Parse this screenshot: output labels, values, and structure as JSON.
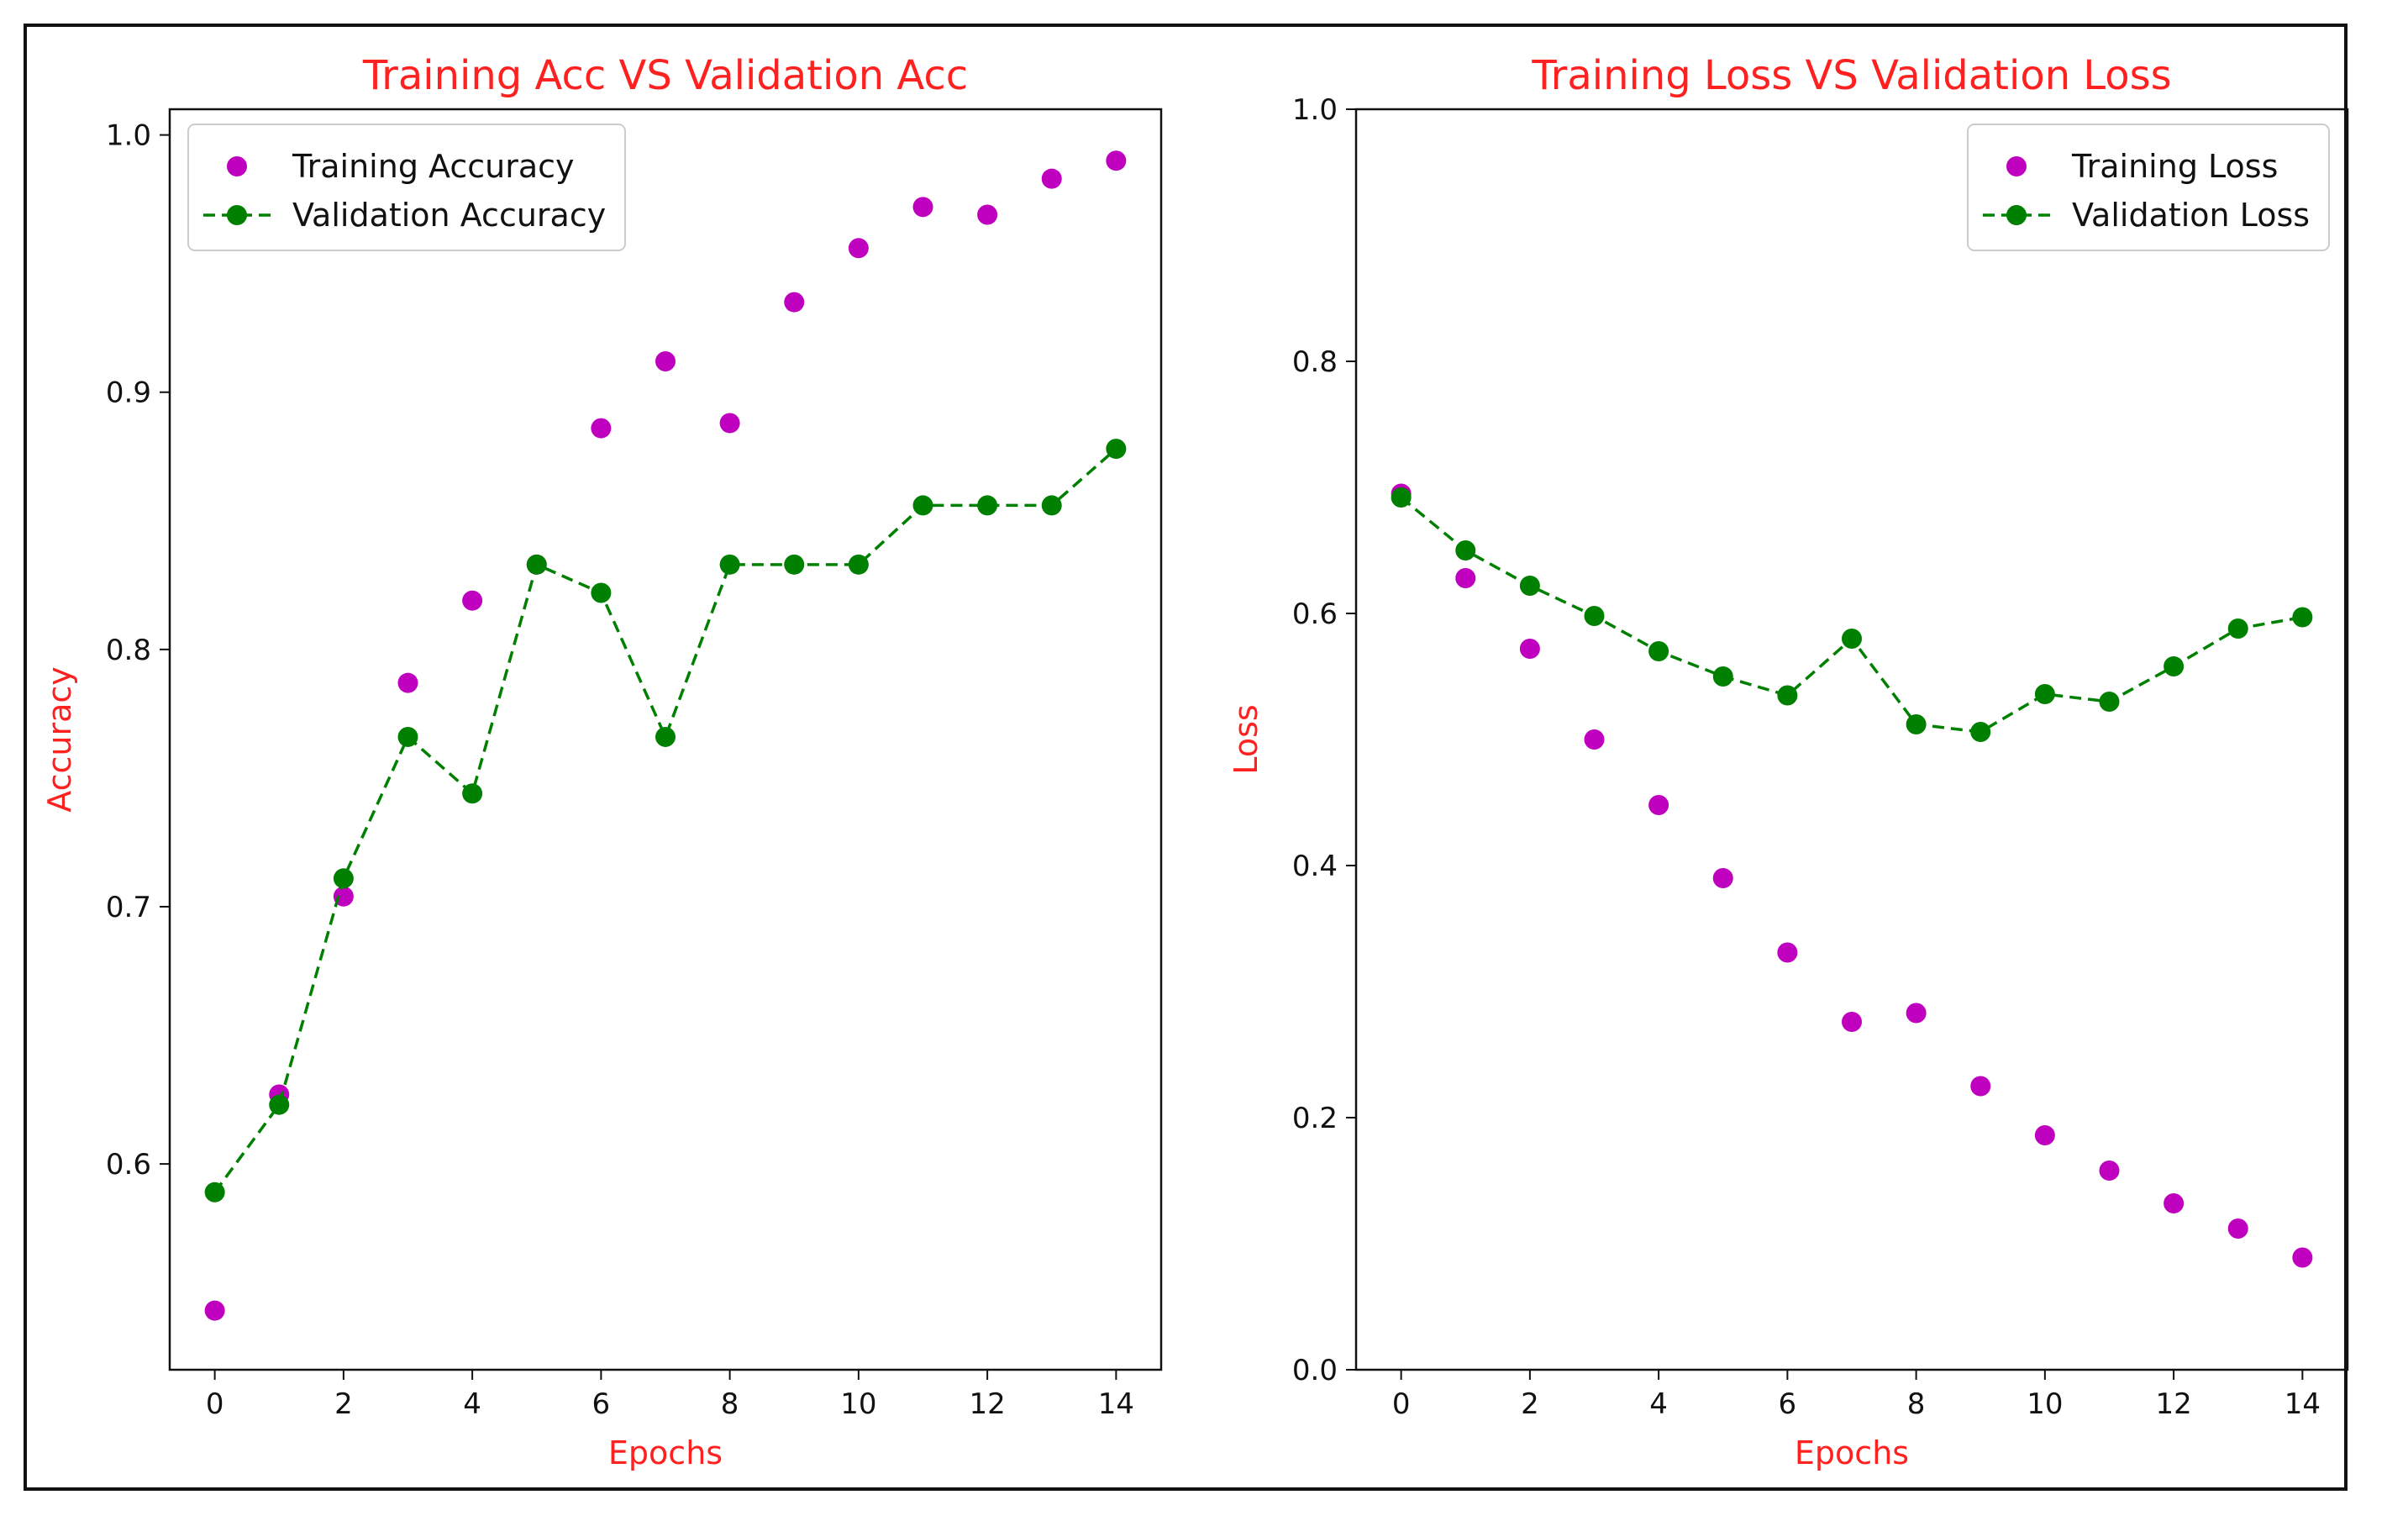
{
  "chart_data": [
    {
      "type": "line",
      "title": "Training Acc VS Validation Acc",
      "xlabel": "Epochs",
      "ylabel": "Accuracy",
      "xlim": [
        -0.7,
        14.7
      ],
      "ylim": [
        0.52,
        1.01
      ],
      "xticks": [
        "0",
        "2",
        "4",
        "6",
        "8",
        "10",
        "12",
        "14"
      ],
      "yticks": [
        "0.6",
        "0.7",
        "0.8",
        "0.9",
        "1.0"
      ],
      "x": [
        0,
        1,
        2,
        3,
        4,
        5,
        6,
        7,
        8,
        9,
        10,
        11,
        12,
        13,
        14
      ],
      "series": [
        {
          "name": "Training Accuracy",
          "style": "markers",
          "color": "#bf00bf",
          "values": [
            0.543,
            0.627,
            0.704,
            0.787,
            0.819,
            0.833,
            0.886,
            0.912,
            0.888,
            0.935,
            0.956,
            0.972,
            0.969,
            0.983,
            0.99
          ]
        },
        {
          "name": "Validation Accuracy",
          "style": "dashed-markers",
          "color": "#008000",
          "values": [
            0.589,
            0.623,
            0.711,
            0.766,
            0.744,
            0.833,
            0.822,
            0.766,
            0.833,
            0.833,
            0.833,
            0.856,
            0.856,
            0.856,
            0.878
          ]
        }
      ],
      "legend": "upper-left"
    },
    {
      "type": "line",
      "title": "Training Loss VS Validation Loss",
      "xlabel": "Epochs",
      "ylabel": "Loss",
      "xlim": [
        -0.7,
        14.7
      ],
      "ylim": [
        0.0,
        1.0
      ],
      "xticks": [
        "0",
        "2",
        "4",
        "6",
        "8",
        "10",
        "12",
        "14"
      ],
      "yticks": [
        "0.0",
        "0.2",
        "0.4",
        "0.6",
        "0.8",
        "1.0"
      ],
      "x": [
        0,
        1,
        2,
        3,
        4,
        5,
        6,
        7,
        8,
        9,
        10,
        11,
        12,
        13,
        14
      ],
      "series": [
        {
          "name": "Training Loss",
          "style": "markers",
          "color": "#bf00bf",
          "values": [
            0.695,
            0.628,
            0.572,
            0.5,
            0.448,
            0.39,
            0.331,
            0.276,
            0.283,
            0.225,
            0.186,
            0.158,
            0.132,
            0.112,
            0.089
          ]
        },
        {
          "name": "Validation Loss",
          "style": "dashed-markers",
          "color": "#008000",
          "values": [
            0.692,
            0.65,
            0.622,
            0.598,
            0.57,
            0.55,
            0.535,
            0.58,
            0.512,
            0.506,
            0.536,
            0.53,
            0.558,
            0.588,
            0.597
          ]
        }
      ],
      "legend": "upper-right"
    }
  ],
  "colors": {
    "title": "#ff2020",
    "label": "#ff2020",
    "training": "#bf00bf",
    "validation": "#008000"
  }
}
